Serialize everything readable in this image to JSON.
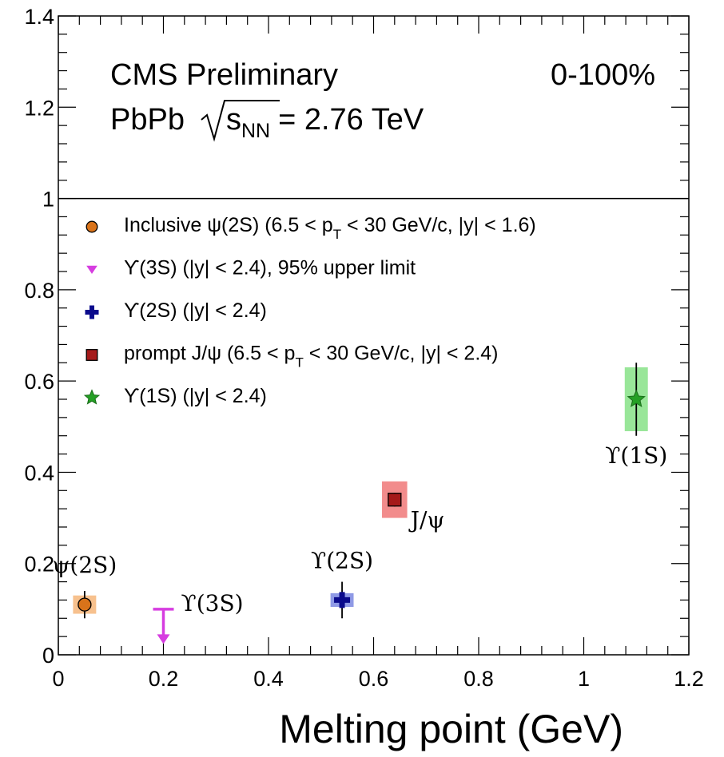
{
  "chart_data": {
    "type": "scatter",
    "title": "",
    "xlabel": "Melting point (GeV)",
    "ylabel": "",
    "xlim": [
      0,
      1.2
    ],
    "ylim": [
      0,
      1.4
    ],
    "x_ticks": [
      "0",
      "0.2",
      "0.4",
      "0.6",
      "0.8",
      "1",
      "1.2"
    ],
    "y_ticks": [
      "0",
      "0.2",
      "0.4",
      "0.6",
      "0.8",
      "1",
      "1.2",
      "1.4"
    ],
    "reference_line_y": 1,
    "grid": false,
    "annotations": {
      "experiment": "CMS Preliminary",
      "system": "PbPb",
      "energy_var": "s",
      "energy_sub": "NN",
      "energy_value": "= 2.76 TeV",
      "centrality": "0-100%"
    },
    "legend": {
      "placement": "upper-left",
      "entries": [
        {
          "marker": "circle",
          "color": "#d9731a",
          "text": "Inclusive ψ(2S) (6.5 < p",
          "sub": "T",
          "text2": " < 30 GeV/c, |y| < 1.6)"
        },
        {
          "marker": "triangle-down",
          "color": "#d63de0",
          "text": "ϒ(3S) (|y| < 2.4), 95% upper limit"
        },
        {
          "marker": "cross",
          "color": "#0a0a8c",
          "text": "ϒ(2S) (|y| < 2.4)"
        },
        {
          "marker": "square",
          "color": "#a51a1a",
          "text": "prompt J/ψ (6.5 < p",
          "sub": "T",
          "text2": " < 30 GeV/c, |y| < 2.4)"
        },
        {
          "marker": "star",
          "color": "#25a025",
          "text": "ϒ(1S) (|y| < 2.4)"
        }
      ]
    },
    "series": [
      {
        "label": "ψ(2S)",
        "x": 0.05,
        "y": 0.11,
        "err": 0.03,
        "syst_dx": 0.022,
        "syst_dy": 0.02,
        "marker": "circle",
        "color": "#d9731a",
        "box_color": "#f7c18e",
        "label_pos": "above"
      },
      {
        "label": "ϒ(3S)",
        "x": 0.2,
        "y": 0.1,
        "upper_limit": true,
        "marker": "triangle-down",
        "color": "#d63de0",
        "label_pos": "right"
      },
      {
        "label": "ϒ(2S)",
        "x": 0.54,
        "y": 0.12,
        "err": 0.04,
        "syst_dx": 0.022,
        "syst_dy": 0.015,
        "marker": "cross",
        "color": "#0a0a8c",
        "box_color": "#8f9ae6",
        "label_pos": "above"
      },
      {
        "label": "J/ψ",
        "x": 0.64,
        "y": 0.34,
        "err": 0.015,
        "syst_dx": 0.024,
        "syst_dy": 0.04,
        "marker": "square",
        "color": "#a51a1a",
        "box_color": "#f28c8c",
        "label_pos": "right-below"
      },
      {
        "label": "ϒ(1S)",
        "x": 1.1,
        "y": 0.56,
        "err": 0.08,
        "syst_dx": 0.022,
        "syst_dy": 0.07,
        "marker": "star",
        "color": "#25a025",
        "box_color": "#99e699",
        "label_pos": "below"
      }
    ]
  }
}
